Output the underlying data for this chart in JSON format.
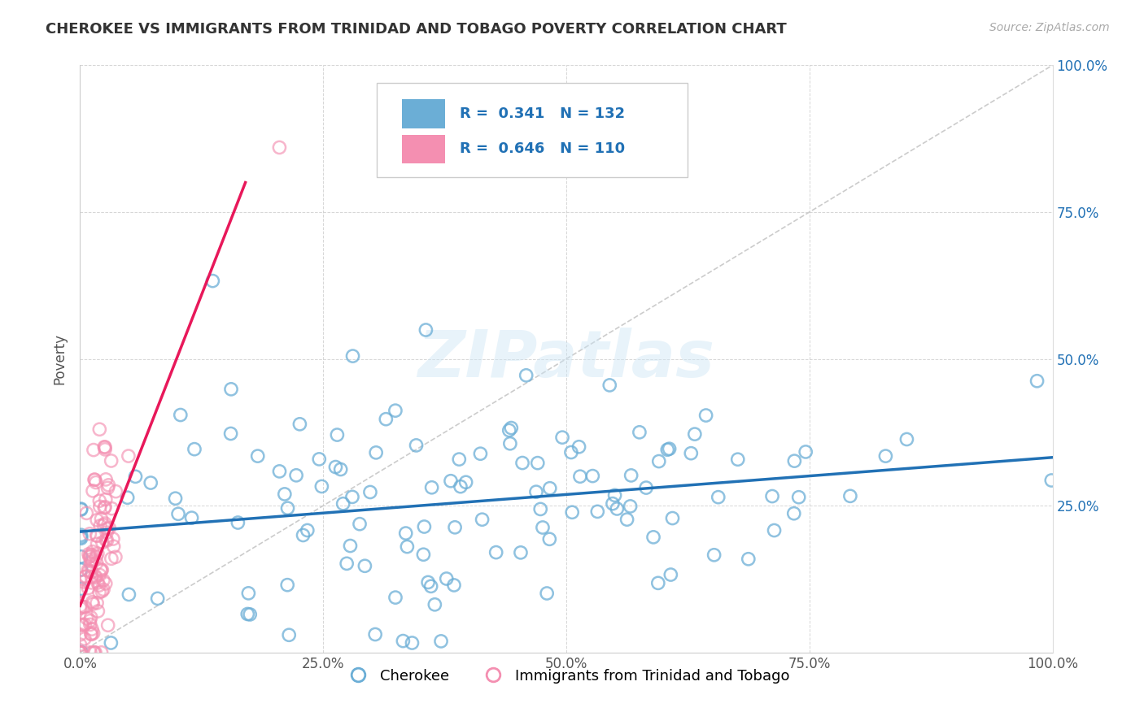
{
  "title": "CHEROKEE VS IMMIGRANTS FROM TRINIDAD AND TOBAGO POVERTY CORRELATION CHART",
  "source": "Source: ZipAtlas.com",
  "ylabel": "Poverty",
  "xlim": [
    0,
    1
  ],
  "ylim": [
    0,
    1
  ],
  "xticks": [
    0.0,
    0.25,
    0.5,
    0.75,
    1.0
  ],
  "xticklabels": [
    "0.0%",
    "25.0%",
    "50.0%",
    "75.0%",
    "100.0%"
  ],
  "cherokee_R": 0.341,
  "cherokee_N": 132,
  "trinidad_R": 0.646,
  "trinidad_N": 110,
  "cherokee_color": "#6baed6",
  "trinidad_color": "#f48fb1",
  "cherokee_line_color": "#2171b5",
  "trinidad_line_color": "#e8185a",
  "legend_label_cherokee": "Cherokee",
  "legend_label_trinidad": "Immigrants from Trinidad and Tobago",
  "watermark": "ZIPatlas",
  "background_color": "#ffffff",
  "grid_color": "#cccccc",
  "title_color": "#333333",
  "seed": 42
}
